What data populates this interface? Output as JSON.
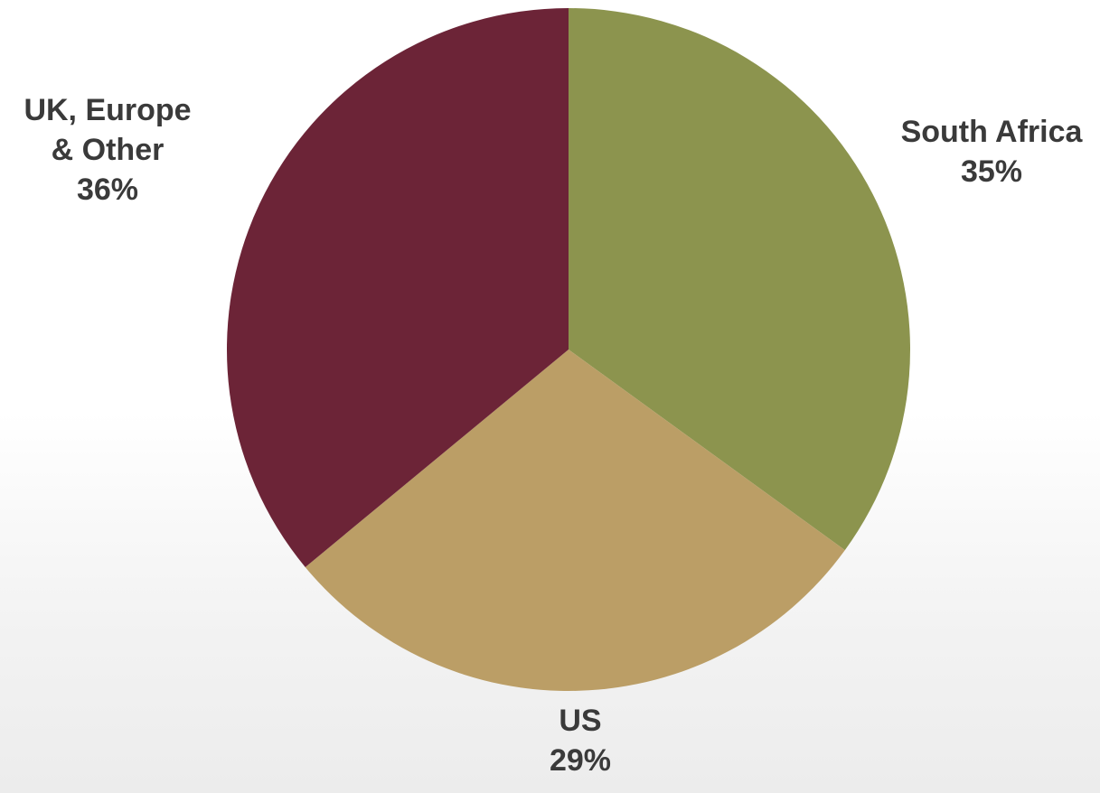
{
  "chart_data": {
    "type": "pie",
    "start_angle_deg": 0,
    "direction": "clockwise",
    "slices": [
      {
        "label_lines": [
          "South Africa"
        ],
        "value": 35,
        "value_label": "35%",
        "color": "#8c944e"
      },
      {
        "label_lines": [
          "US"
        ],
        "value": 29,
        "value_label": "29%",
        "color": "#bb9e66"
      },
      {
        "label_lines": [
          "UK, Europe",
          "& Other"
        ],
        "value": 36,
        "value_label": "36%",
        "color": "#6c2437"
      }
    ]
  }
}
